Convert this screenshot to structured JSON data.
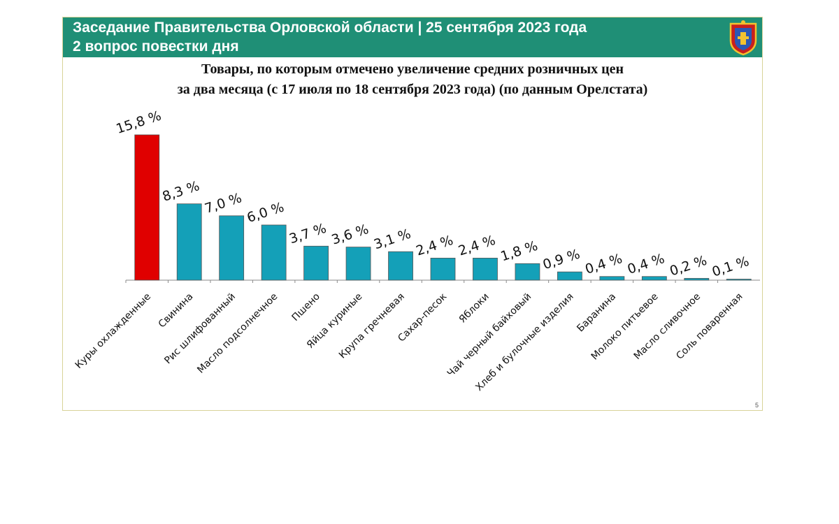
{
  "header": {
    "line1": "Заседание Правительства Орловской области | 25 сентября 2023 года",
    "line2": "2 вопрос повестки дня",
    "emblem_icon": "coat-of-arms-icon"
  },
  "page_number": "5",
  "colors": {
    "header_bg": "#1f8f76",
    "highlight_bar": "#e00000",
    "bar": "#14a0b8"
  },
  "chart_data": {
    "type": "bar",
    "title_line1": "Товары, по которым отмечено увеличение средних розничных цен",
    "title_line2": "за два месяца (с 17 июля по 18 сентября 2023 года) (по данным Орелстата)",
    "categories": [
      "Куры охлажденные",
      "Свинина",
      "Рис шлифованный",
      "Масло подсолнечное",
      "Пшено",
      "Яйца куриные",
      "Крупа гречневая",
      "Сахар-песок",
      "Яблоки",
      "Чай черный байховый",
      "Хлеб и булочные изделия",
      "Баранина",
      "Молоко питьевое",
      "Масло сливочное",
      "Соль поваренная"
    ],
    "values": [
      15.8,
      8.3,
      7.0,
      6.0,
      3.7,
      3.6,
      3.1,
      2.4,
      2.4,
      1.8,
      0.9,
      0.4,
      0.4,
      0.2,
      0.1
    ],
    "data_labels": [
      "15,8 %",
      "8,3 %",
      "7,0 %",
      "6,0 %",
      "3,7 %",
      "3,6 %",
      "3,1 %",
      "2,4 %",
      "2,4 %",
      "1,8 %",
      "0,9 %",
      "0,4 %",
      "0,4 %",
      "0,2 %",
      "0,1 %"
    ],
    "highlight_index": 0,
    "xlabel": "",
    "ylabel": "",
    "ylim": [
      0,
      15.8
    ],
    "grid": false
  }
}
